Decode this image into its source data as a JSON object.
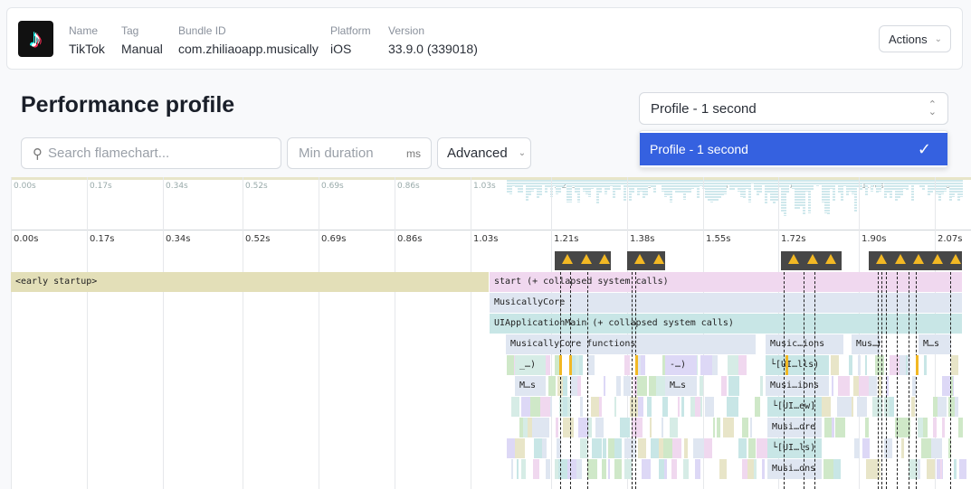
{
  "app": {
    "logo_text": "TikTok",
    "fields": [
      {
        "label": "Name",
        "value": "TikTok"
      },
      {
        "label": "Tag",
        "value": "Manual"
      },
      {
        "label": "Bundle ID",
        "value": "com.zhiliaoapp.musically"
      },
      {
        "label": "Platform",
        "value": "iOS",
        "icon": "apple-icon"
      },
      {
        "label": "Version",
        "value": "33.9.0 (339018)"
      }
    ],
    "actions_label": "Actions"
  },
  "page_title": "Performance profile",
  "toolbar": {
    "search_placeholder": "Search flamechart...",
    "min_duration_placeholder": "Min duration",
    "min_duration_unit": "ms",
    "advanced_label": "Advanced"
  },
  "profile_select": {
    "value": "Profile - 1 second",
    "options": [
      {
        "label": "Profile - 1 second",
        "selected": true
      }
    ]
  },
  "flamechart": {
    "ticks": [
      "0.00s",
      "0.17s",
      "0.34s",
      "0.52s",
      "0.69s",
      "0.86s",
      "1.03s",
      "1.21s",
      "1.38s",
      "1.55s",
      "1.72s",
      "1.90s",
      "2.07s"
    ],
    "frames": [
      "<early startup>",
      "start (+ collapsed system calls)",
      "MusicallyCore",
      "UIApplicationMain (+ collapsed system calls)",
      "MusicallyCore functions",
      "Music…ions",
      "Mus…ns",
      "M…s",
      "_…)",
      "-…)",
      "└[UI…lls)",
      "M…s",
      "M…s",
      "Musi…ions",
      "└[UI…ew]",
      "Musi…ore",
      "└[UI…ls)",
      "Musi…ons"
    ],
    "colors": {
      "early": "#e3dfb8",
      "start": "#f0d8ef",
      "core": "#dfe6f1",
      "uiapp": "#c8e6e6",
      "warning": "#f2b824",
      "selected": "#3561e0"
    }
  }
}
